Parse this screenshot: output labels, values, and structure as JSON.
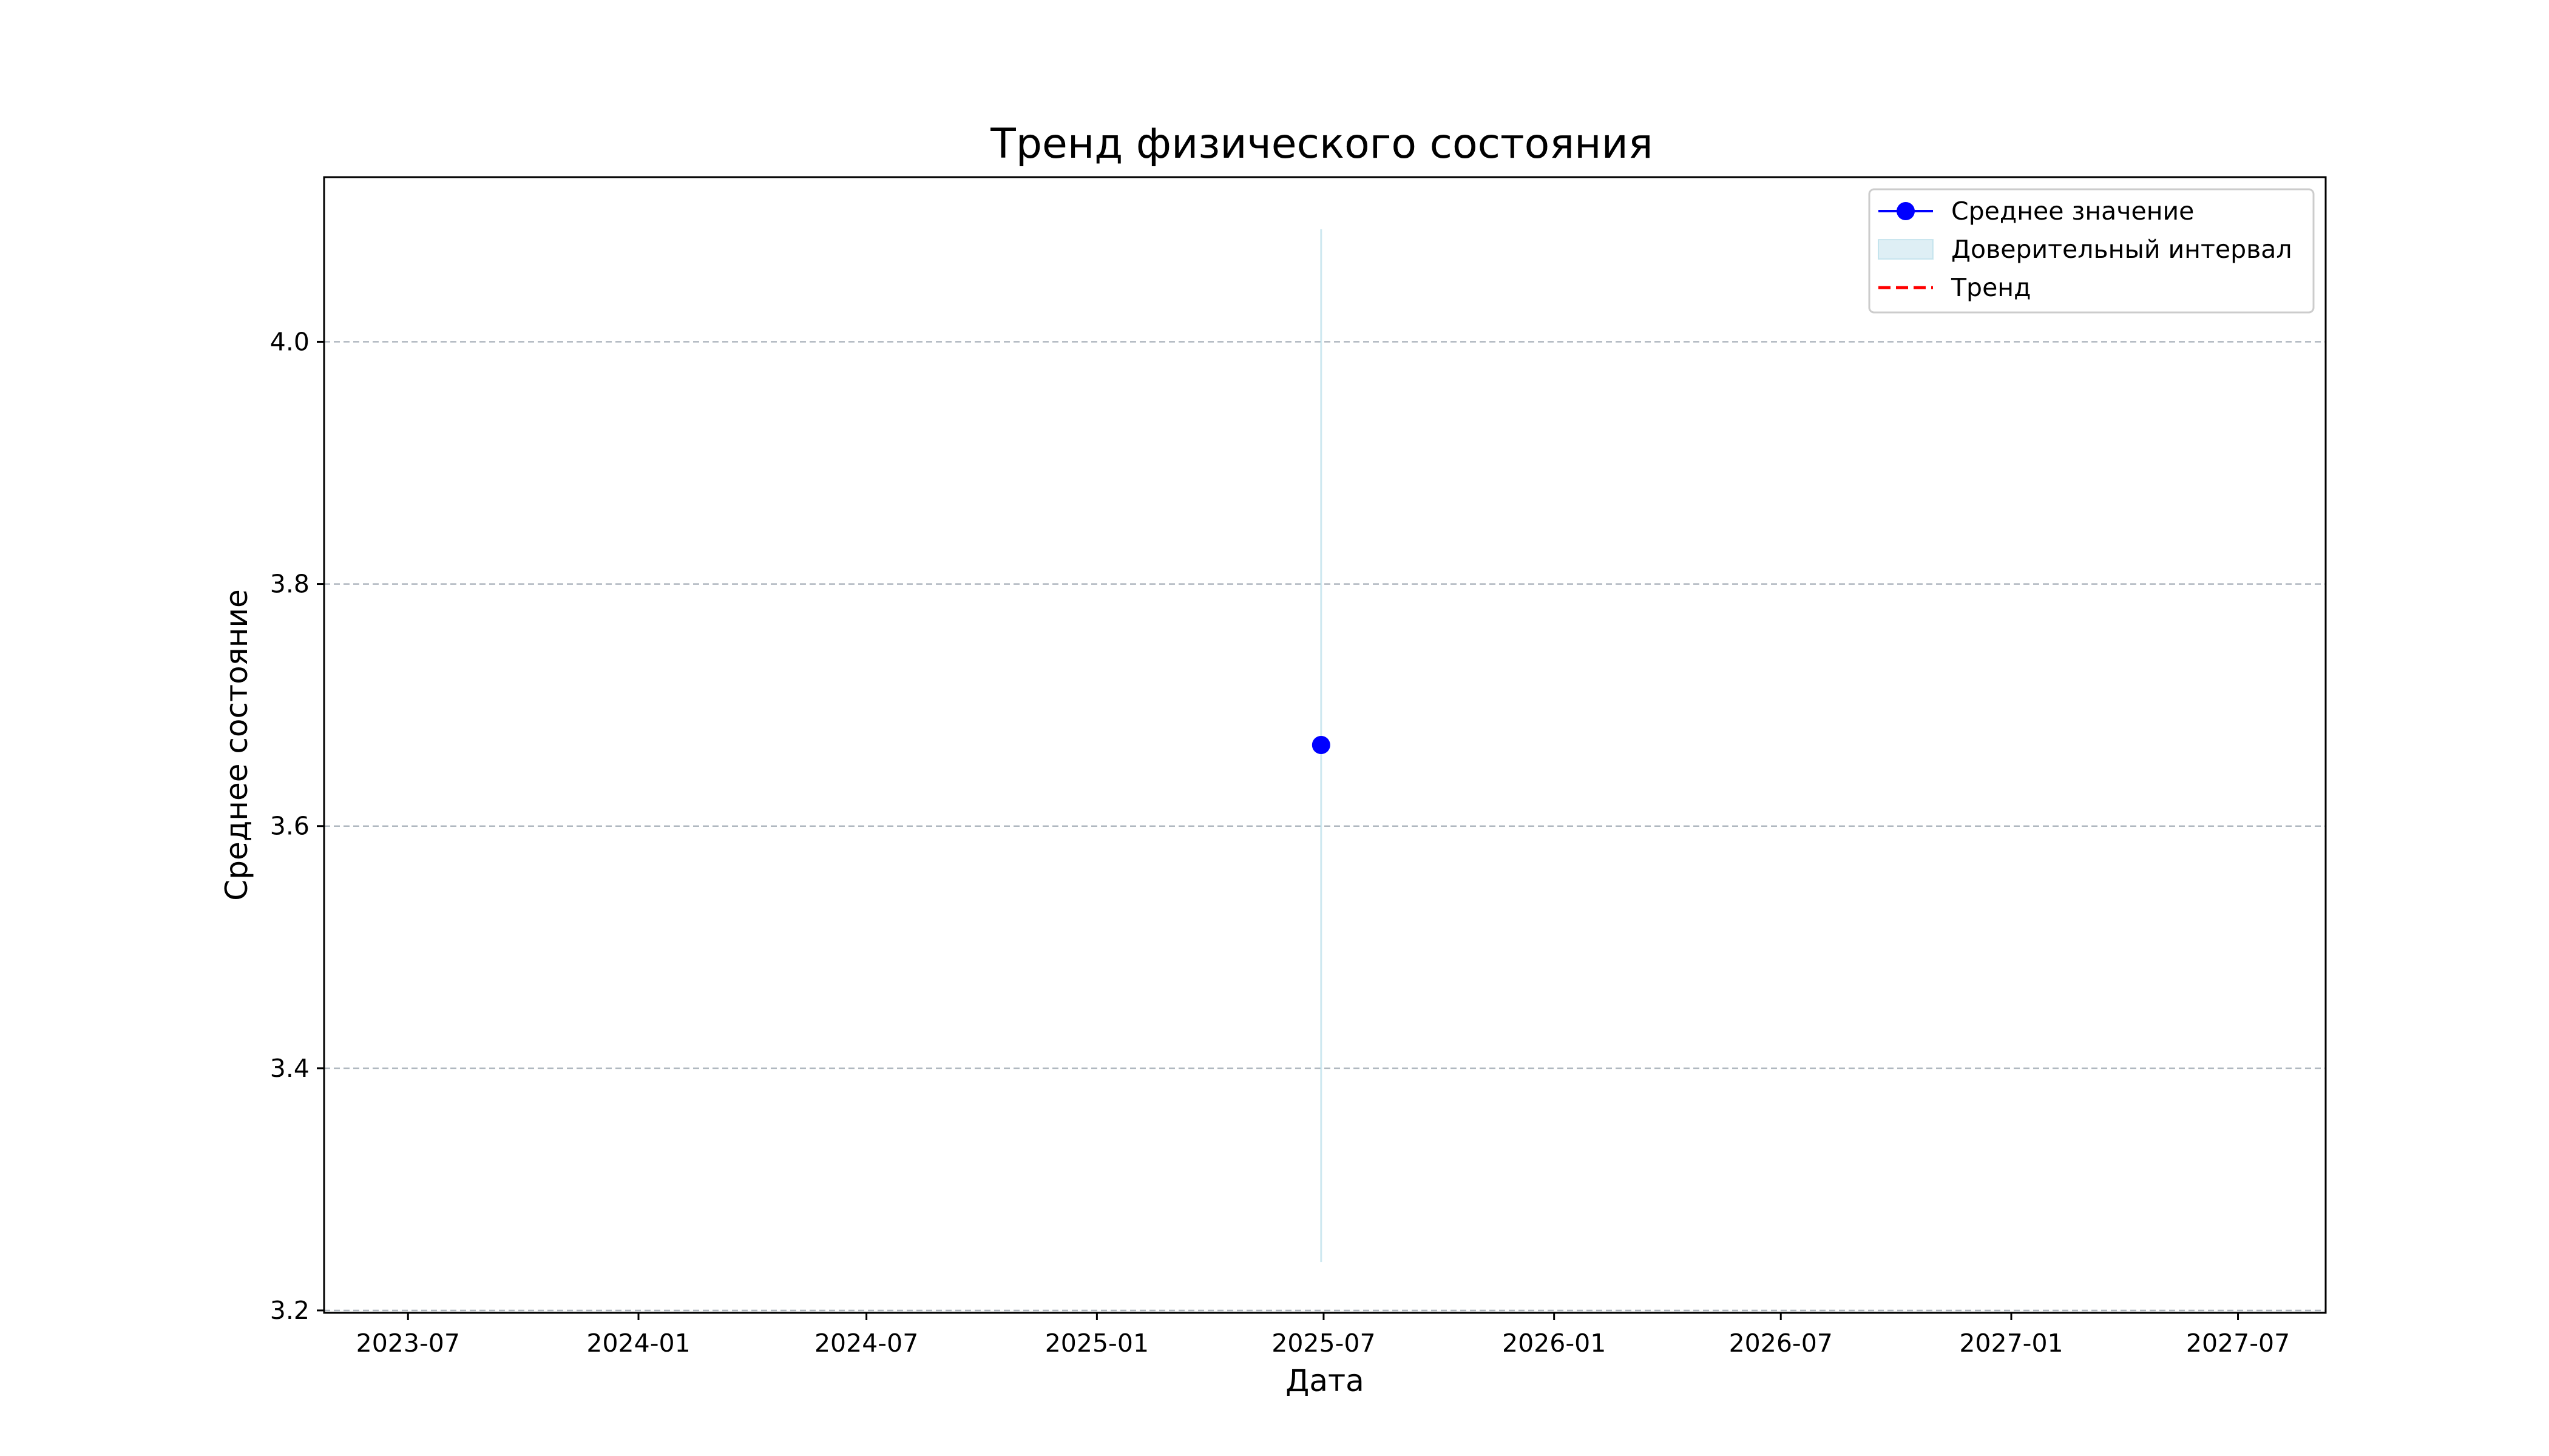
{
  "chart_data": {
    "type": "line",
    "title": "Тренд физического состояния",
    "xlabel": "Дата",
    "ylabel": "Среднее состояние",
    "x_tick_labels": [
      "2023-07",
      "2024-01",
      "2024-07",
      "2025-01",
      "2025-07",
      "2026-01",
      "2026-07",
      "2027-01",
      "2027-07"
    ],
    "x_tick_dates": [
      "2023-07-01",
      "2024-01-01",
      "2024-07-01",
      "2025-01-01",
      "2025-07-01",
      "2026-01-01",
      "2026-07-01",
      "2027-01-01",
      "2027-07-01"
    ],
    "xlim": [
      "2023-04-25",
      "2027-09-09"
    ],
    "ylim": [
      3.198,
      4.136
    ],
    "y_ticks": [
      3.2,
      3.4,
      3.6,
      3.8,
      4.0
    ],
    "y_tick_labels": [
      "3.2",
      "3.4",
      "3.6",
      "3.8",
      "4.0"
    ],
    "grid": "y",
    "grid_color": "#b0b8c0",
    "legend_placement": "top-right",
    "series": [
      {
        "name": "Среднее значение",
        "kind": "line-marker",
        "color": "#0000ff",
        "points": [
          {
            "x": "2025-06-29",
            "y": 3.667
          }
        ]
      },
      {
        "name": "Доверительный интервал",
        "kind": "band",
        "color": "#add8e6",
        "points": [
          {
            "x": "2025-06-29",
            "low": 3.24,
            "high": 4.093
          }
        ]
      },
      {
        "name": "Тренд",
        "kind": "dashed-line",
        "color": "#ff0000",
        "points": []
      }
    ]
  }
}
